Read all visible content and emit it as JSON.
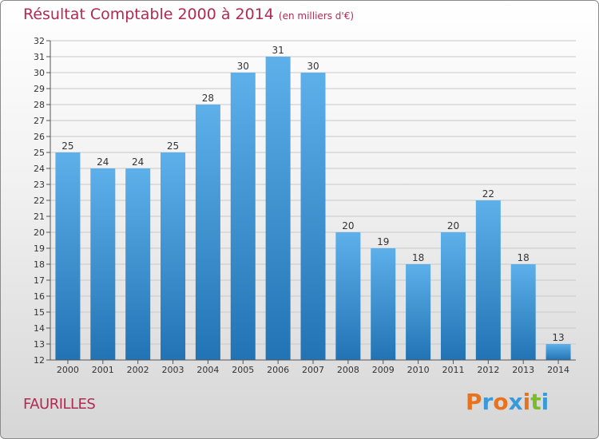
{
  "header": {
    "title": "Résultat Comptable 2000 à 2014",
    "subtitle": "(en milliers d'€)"
  },
  "footer": {
    "commune": "FAURILLES",
    "logo_text": "Proxiti"
  },
  "colors": {
    "title": "#b02a52",
    "bar_top": "#5db0ea",
    "bar_bottom": "#2273b4",
    "grid": "#c8c8c8",
    "axis": "#555555"
  },
  "chart_data": {
    "type": "bar",
    "title": "Résultat Comptable 2000 à 2014",
    "xlabel": "",
    "ylabel": "",
    "categories": [
      "2000",
      "2001",
      "2002",
      "2003",
      "2004",
      "2005",
      "2006",
      "2007",
      "2008",
      "2009",
      "2010",
      "2011",
      "2012",
      "2013",
      "2014"
    ],
    "values": [
      25,
      24,
      24,
      25,
      28,
      30,
      31,
      30,
      20,
      19,
      18,
      20,
      22,
      18,
      13
    ],
    "ylim": [
      12,
      32
    ],
    "yticks": [
      12,
      13,
      14,
      15,
      16,
      17,
      18,
      19,
      20,
      21,
      22,
      23,
      24,
      25,
      26,
      27,
      28,
      29,
      30,
      31,
      32
    ],
    "grid": true
  }
}
